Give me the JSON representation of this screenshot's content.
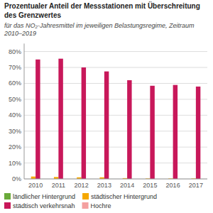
{
  "chart_data": {
    "type": "bar",
    "title": "Prozentualer Anteil der Messstationen mit Überschreitung des Grenzwertes",
    "subtitle": "für das NO₂-Jahresmittel im jeweiligen Belastungsregime, Zeitraum 2010–2019",
    "categories": [
      "2010",
      "2011",
      "2012",
      "2013",
      "2014",
      "2015",
      "2016",
      "2017"
    ],
    "series": [
      {
        "name": "ländlicher Hintergrund",
        "color": "#6aaa3a",
        "values": [
          0,
          0,
          0,
          0,
          0,
          0,
          0,
          0
        ]
      },
      {
        "name": "städtischer Hintergrund",
        "color": "#f5a800",
        "values": [
          1.5,
          1.2,
          1.0,
          1.0,
          0.5,
          0.3,
          0.3,
          0.3
        ]
      },
      {
        "name": "städtisch verkehrsnah",
        "color": "#c8185a",
        "values": [
          75,
          75.5,
          70,
          67.5,
          62,
          58.5,
          59,
          58
        ]
      },
      {
        "name": "Hochre",
        "color": "#f4a0a0",
        "values": [
          0,
          0,
          0,
          0,
          0,
          0,
          0,
          0
        ]
      }
    ],
    "ylim": [
      0,
      85
    ],
    "yticks": [
      {
        "value": 0,
        "label": "0%"
      },
      {
        "value": 10,
        "label": "10%"
      },
      {
        "value": 20,
        "label": "20%"
      },
      {
        "value": 30,
        "label": "30%"
      },
      {
        "value": 40,
        "label": "40%"
      },
      {
        "value": 50,
        "label": "50%"
      },
      {
        "value": 60,
        "label": "60%"
      },
      {
        "value": 70,
        "label": "70%"
      },
      {
        "value": 80,
        "label": "80%"
      }
    ],
    "grid": true,
    "legend": "bottom"
  }
}
